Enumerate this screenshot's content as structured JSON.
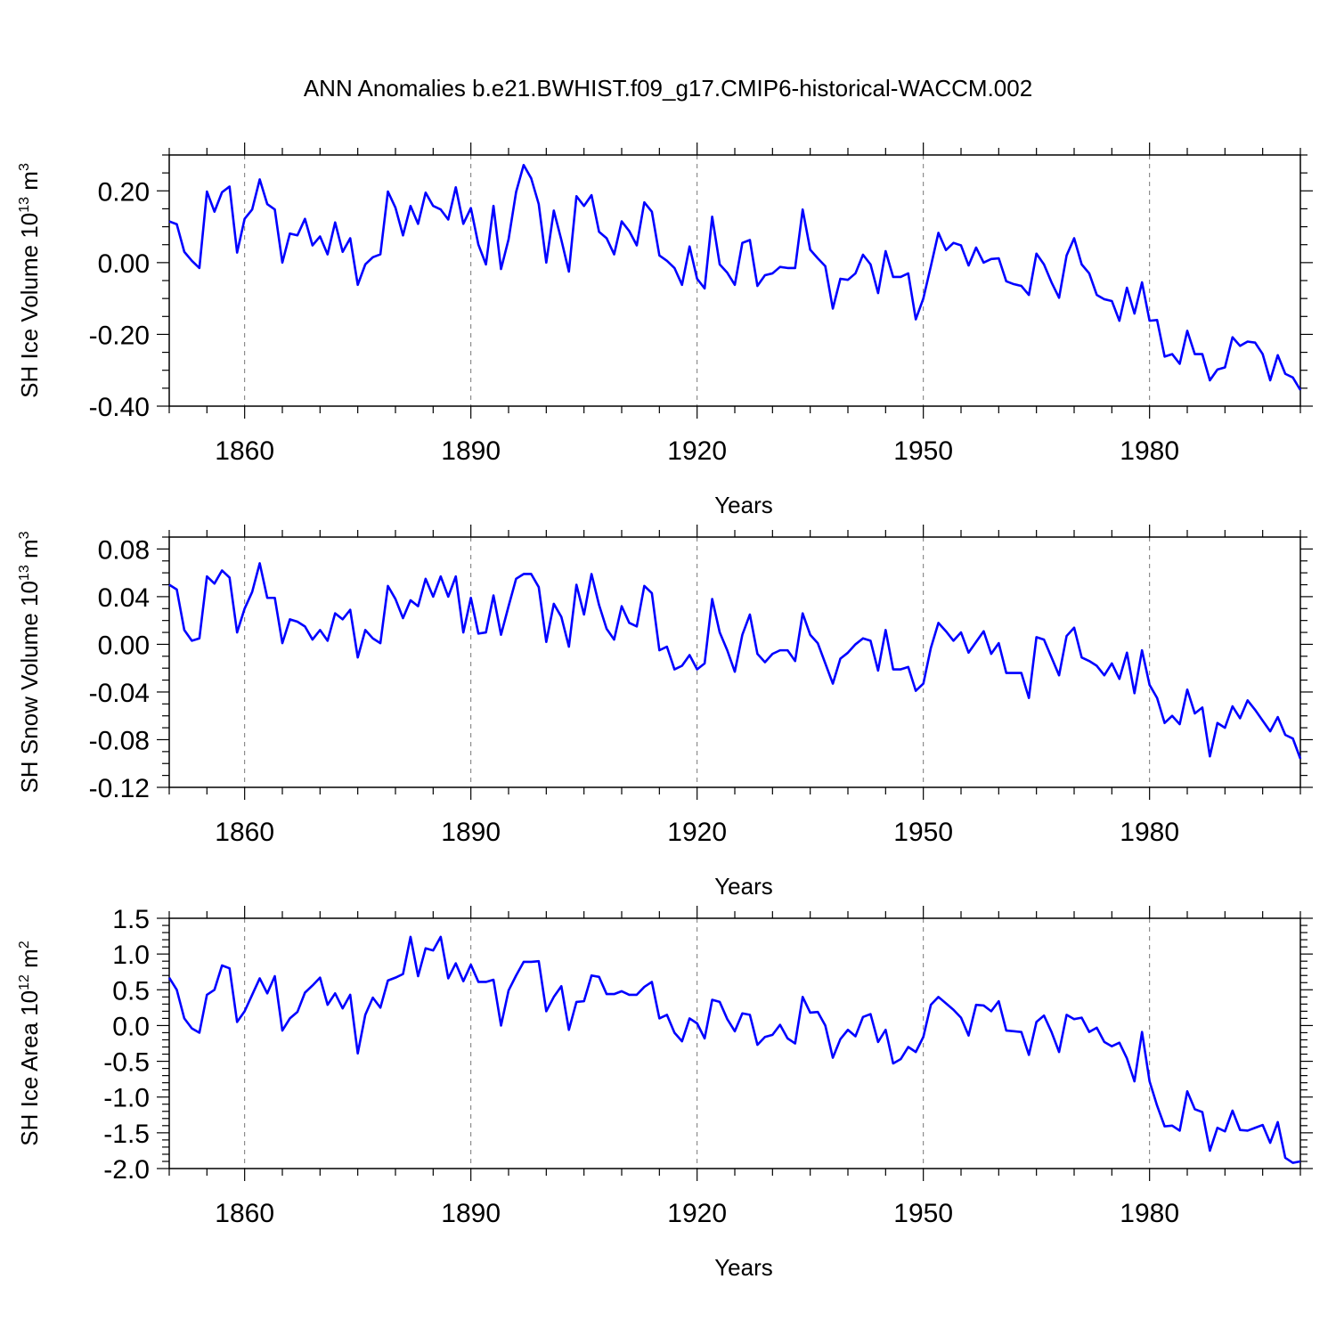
{
  "title": "ANN Anomalies b.e21.BWHIST.f09_g17.CMIP6-historical-WACCM.002",
  "line_color": "#0000ff",
  "chart_data": [
    {
      "type": "line",
      "ylabel_main": "SH Ice Volume 10",
      "ylabel_exp": "13",
      "ylabel_unit": " m",
      "ylabel_unit_exp": "3",
      "xlabel": "Years",
      "xlim": [
        1850,
        2000
      ],
      "ylim": [
        -0.4,
        0.3
      ],
      "x_ticks": [
        1860,
        1890,
        1920,
        1950,
        1980
      ],
      "x_tick_labels": [
        "1860",
        "1890",
        "1920",
        "1950",
        "1980"
      ],
      "y_ticks": [
        -0.4,
        -0.2,
        0.0,
        0.2
      ],
      "y_tick_labels": [
        "-0.40",
        "-0.20",
        "0.00",
        "0.20"
      ],
      "y_minor_step": 0.05,
      "grid": "vertical dashed at major x ticks",
      "x_start": 1850,
      "values": [
        0.115,
        0.107,
        0.03,
        0.005,
        -0.015,
        0.198,
        0.142,
        0.196,
        0.212,
        0.028,
        0.122,
        0.148,
        0.232,
        0.163,
        0.148,
        0.0,
        0.081,
        0.076,
        0.122,
        0.048,
        0.073,
        0.023,
        0.112,
        0.03,
        0.068,
        -0.062,
        -0.005,
        0.015,
        0.023,
        0.198,
        0.153,
        0.076,
        0.158,
        0.108,
        0.195,
        0.158,
        0.148,
        0.12,
        0.21,
        0.108,
        0.152,
        0.05,
        -0.005,
        0.158,
        -0.018,
        0.065,
        0.197,
        0.272,
        0.235,
        0.163,
        0.0,
        0.145,
        0.063,
        -0.025,
        0.185,
        0.158,
        0.188,
        0.086,
        0.068,
        0.023,
        0.115,
        0.088,
        0.048,
        0.168,
        0.142,
        0.02,
        0.005,
        -0.015,
        -0.062,
        0.045,
        -0.045,
        -0.072,
        0.128,
        -0.005,
        -0.028,
        -0.062,
        0.055,
        0.063,
        -0.065,
        -0.035,
        -0.03,
        -0.012,
        -0.015,
        -0.015,
        0.148,
        0.036,
        0.012,
        -0.01,
        -0.128,
        -0.045,
        -0.048,
        -0.03,
        0.022,
        -0.005,
        -0.085,
        0.032,
        -0.04,
        -0.04,
        -0.03,
        -0.158,
        -0.1,
        -0.01,
        0.083,
        0.035,
        0.055,
        0.048,
        -0.008,
        0.042,
        0.0,
        0.01,
        0.012,
        -0.052,
        -0.06,
        -0.065,
        -0.09,
        0.025,
        -0.005,
        -0.055,
        -0.098,
        0.02,
        0.068,
        -0.005,
        -0.03,
        -0.09,
        -0.102,
        -0.107,
        -0.162,
        -0.07,
        -0.142,
        -0.055,
        -0.162,
        -0.16,
        -0.262,
        -0.255,
        -0.282,
        -0.19,
        -0.255,
        -0.255,
        -0.328,
        -0.298,
        -0.292,
        -0.208,
        -0.232,
        -0.22,
        -0.223,
        -0.255,
        -0.328,
        -0.258,
        -0.31,
        -0.32,
        -0.355
      ]
    },
    {
      "type": "line",
      "ylabel_main": "SH Snow Volume 10",
      "ylabel_exp": "13",
      "ylabel_unit": " m",
      "ylabel_unit_exp": "3",
      "xlabel": "Years",
      "xlim": [
        1850,
        2000
      ],
      "ylim": [
        -0.12,
        0.09
      ],
      "x_ticks": [
        1860,
        1890,
        1920,
        1950,
        1980
      ],
      "x_tick_labels": [
        "1860",
        "1890",
        "1920",
        "1950",
        "1980"
      ],
      "y_ticks": [
        -0.12,
        -0.08,
        -0.04,
        0.0,
        0.04,
        0.08
      ],
      "y_tick_labels": [
        "-0.12",
        "-0.08",
        "-0.04",
        "0.00",
        "0.04",
        "0.08"
      ],
      "y_minor_step": 0.01,
      "grid": "vertical dashed at major x ticks",
      "x_start": 1850,
      "values": [
        0.05,
        0.046,
        0.012,
        0.003,
        0.005,
        0.057,
        0.051,
        0.062,
        0.056,
        0.01,
        0.03,
        0.044,
        0.068,
        0.039,
        0.039,
        0.001,
        0.021,
        0.019,
        0.015,
        0.004,
        0.012,
        0.003,
        0.026,
        0.021,
        0.029,
        -0.011,
        0.012,
        0.005,
        0.001,
        0.049,
        0.038,
        0.022,
        0.037,
        0.032,
        0.055,
        0.04,
        0.057,
        0.04,
        0.057,
        0.01,
        0.039,
        0.009,
        0.01,
        0.041,
        0.008,
        0.032,
        0.055,
        0.059,
        0.059,
        0.048,
        0.002,
        0.034,
        0.023,
        -0.002,
        0.05,
        0.025,
        0.059,
        0.033,
        0.013,
        0.004,
        0.032,
        0.018,
        0.015,
        0.049,
        0.043,
        -0.005,
        -0.002,
        -0.021,
        -0.018,
        -0.009,
        -0.021,
        -0.016,
        0.038,
        0.01,
        -0.005,
        -0.023,
        0.008,
        0.025,
        -0.008,
        -0.015,
        -0.008,
        -0.005,
        -0.005,
        -0.014,
        0.026,
        0.008,
        0.001,
        -0.016,
        -0.033,
        -0.012,
        -0.007,
        0.0,
        0.005,
        0.003,
        -0.022,
        0.012,
        -0.021,
        -0.021,
        -0.019,
        -0.039,
        -0.033,
        -0.003,
        0.018,
        0.011,
        0.003,
        0.01,
        -0.007,
        0.002,
        0.011,
        -0.008,
        0.001,
        -0.024,
        -0.024,
        -0.024,
        -0.045,
        0.006,
        0.004,
        -0.011,
        -0.026,
        0.007,
        0.014,
        -0.011,
        -0.014,
        -0.018,
        -0.026,
        -0.016,
        -0.029,
        -0.007,
        -0.041,
        -0.005,
        -0.034,
        -0.045,
        -0.066,
        -0.06,
        -0.067,
        -0.038,
        -0.058,
        -0.053,
        -0.094,
        -0.066,
        -0.07,
        -0.052,
        -0.062,
        -0.047,
        -0.055,
        -0.064,
        -0.073,
        -0.061,
        -0.076,
        -0.079,
        -0.096
      ]
    },
    {
      "type": "line",
      "ylabel_main": "SH Ice Area 10",
      "ylabel_exp": "12",
      "ylabel_unit": " m",
      "ylabel_unit_exp": "2",
      "xlabel": "Years",
      "xlim": [
        1850,
        2000
      ],
      "ylim": [
        -2.0,
        1.5
      ],
      "x_ticks": [
        1860,
        1890,
        1920,
        1950,
        1980
      ],
      "x_tick_labels": [
        "1860",
        "1890",
        "1920",
        "1950",
        "1980"
      ],
      "y_ticks": [
        -2.0,
        -1.5,
        -1.0,
        -0.5,
        0.0,
        0.5,
        1.0,
        1.5
      ],
      "y_tick_labels": [
        "-2.0",
        "-1.5",
        "-1.0",
        "-0.5",
        "0.0",
        "0.5",
        "1.0",
        "1.5"
      ],
      "y_minor_step": 0.1,
      "grid": "vertical dashed at major x ticks",
      "x_start": 1850,
      "values": [
        0.67,
        0.5,
        0.1,
        -0.04,
        -0.1,
        0.43,
        0.5,
        0.84,
        0.8,
        0.05,
        0.2,
        0.43,
        0.66,
        0.45,
        0.69,
        -0.07,
        0.1,
        0.19,
        0.46,
        0.56,
        0.67,
        0.29,
        0.45,
        0.24,
        0.43,
        -0.39,
        0.15,
        0.39,
        0.25,
        0.63,
        0.67,
        0.72,
        1.24,
        0.69,
        1.08,
        1.05,
        1.24,
        0.66,
        0.87,
        0.62,
        0.85,
        0.61,
        0.61,
        0.64,
        0.0,
        0.49,
        0.7,
        0.89,
        0.89,
        0.9,
        0.2,
        0.4,
        0.55,
        -0.06,
        0.33,
        0.34,
        0.7,
        0.68,
        0.44,
        0.44,
        0.48,
        0.43,
        0.43,
        0.54,
        0.61,
        0.1,
        0.15,
        -0.1,
        -0.22,
        0.1,
        0.03,
        -0.18,
        0.36,
        0.33,
        0.09,
        -0.08,
        0.17,
        0.15,
        -0.27,
        -0.16,
        -0.13,
        0.01,
        -0.18,
        -0.25,
        0.4,
        0.18,
        0.19,
        0.0,
        -0.45,
        -0.19,
        -0.06,
        -0.15,
        0.12,
        0.16,
        -0.23,
        -0.06,
        -0.53,
        -0.47,
        -0.3,
        -0.37,
        -0.16,
        0.29,
        0.4,
        0.31,
        0.22,
        0.11,
        -0.14,
        0.29,
        0.28,
        0.2,
        0.34,
        -0.07,
        -0.08,
        -0.09,
        -0.41,
        0.05,
        0.14,
        -0.09,
        -0.37,
        0.15,
        0.09,
        0.11,
        -0.09,
        -0.03,
        -0.23,
        -0.29,
        -0.24,
        -0.46,
        -0.78,
        -0.09,
        -0.78,
        -1.12,
        -1.41,
        -1.4,
        -1.47,
        -0.92,
        -1.17,
        -1.21,
        -1.75,
        -1.43,
        -1.48,
        -1.19,
        -1.46,
        -1.47,
        -1.43,
        -1.39,
        -1.64,
        -1.35,
        -1.85,
        -1.92,
        -1.9
      ]
    }
  ]
}
